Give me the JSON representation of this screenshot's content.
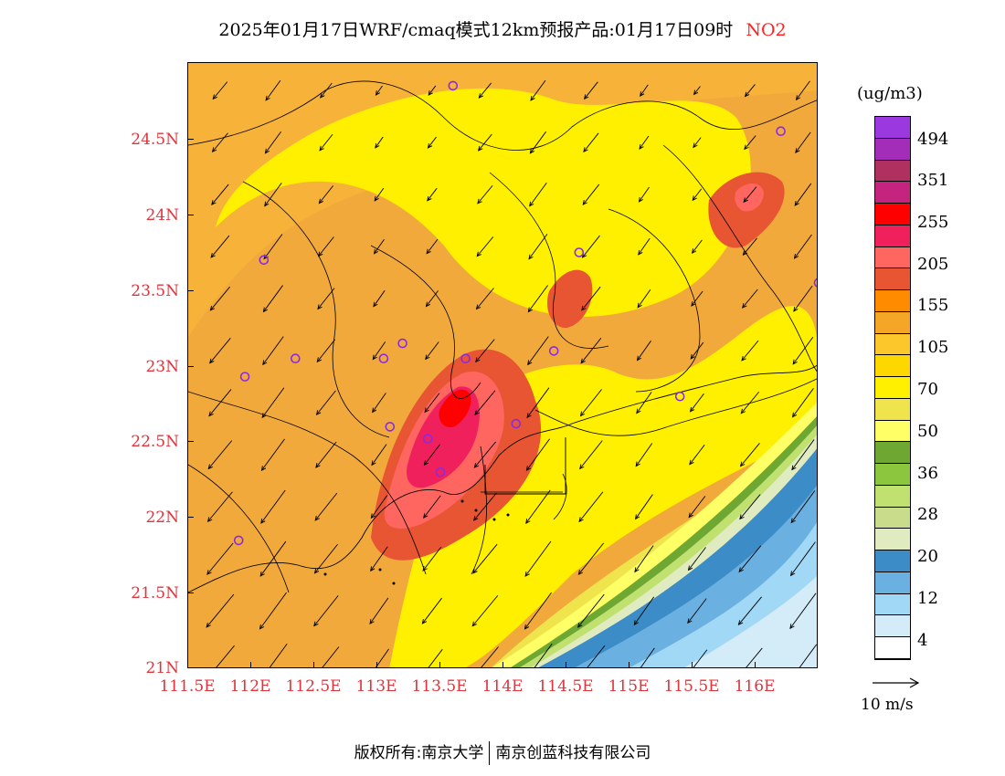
{
  "title": {
    "text": "2025年01月17日WRF/cmaq模式12km预报产品:01月17日09时",
    "pollutant": "NO2"
  },
  "map": {
    "lat_ticks": [
      "24.5N",
      "24N",
      "23.5N",
      "23N",
      "22.5N",
      "22N",
      "21.5N",
      "21N"
    ],
    "lon_ticks": [
      "111.5E",
      "112E",
      "112.5E",
      "113E",
      "113.5E",
      "114E",
      "114.5E",
      "115E",
      "115.5E",
      "116E"
    ],
    "lon_range": [
      111.5,
      116.5
    ],
    "lat_range": [
      21,
      25
    ],
    "wind_direction": "northeasterly",
    "station_marker_color": "#8a2be2",
    "stations": [
      {
        "lon": 113.6,
        "lat": 24.85
      },
      {
        "lon": 112.1,
        "lat": 23.7
      },
      {
        "lon": 113.2,
        "lat": 23.15
      },
      {
        "lon": 113.05,
        "lat": 23.05
      },
      {
        "lon": 112.35,
        "lat": 23.05
      },
      {
        "lon": 111.95,
        "lat": 22.93
      },
      {
        "lon": 113.7,
        "lat": 23.05
      },
      {
        "lon": 114.4,
        "lat": 23.1
      },
      {
        "lon": 114.6,
        "lat": 23.75
      },
      {
        "lon": 116.2,
        "lat": 24.55
      },
      {
        "lon": 116.5,
        "lat": 23.55
      },
      {
        "lon": 115.4,
        "lat": 22.8
      },
      {
        "lon": 113.1,
        "lat": 22.6
      },
      {
        "lon": 113.4,
        "lat": 22.52
      },
      {
        "lon": 113.5,
        "lat": 22.3
      },
      {
        "lon": 114.1,
        "lat": 22.62
      },
      {
        "lon": 111.9,
        "lat": 21.85
      }
    ]
  },
  "legend": {
    "units": "(ug/m3)",
    "labels": [
      "494",
      "351",
      "255",
      "205",
      "155",
      "105",
      "70",
      "50",
      "36",
      "28",
      "20",
      "12",
      "4"
    ],
    "colors": [
      "#9c38e0",
      "#a32cb8",
      "#b03060",
      "#c4237e",
      "#ff0000",
      "#f0205c",
      "#ff6660",
      "#e85532",
      "#ff8c00",
      "#f5a626",
      "#fbc72a",
      "#ffd700",
      "#fff000",
      "#f0e44c",
      "#ffff66",
      "#6ea832",
      "#8cc63f",
      "#c0e070",
      "#c8dc8c",
      "#e0ecc0",
      "#3c8cc8",
      "#6ab0e0",
      "#a0d8f5",
      "#d4ecf8",
      "#ffffff"
    ],
    "arrow_scale": "10 m/s"
  },
  "footer": {
    "left": "版权所有:南京大学",
    "right": "南京创蓝科技有限公司"
  }
}
